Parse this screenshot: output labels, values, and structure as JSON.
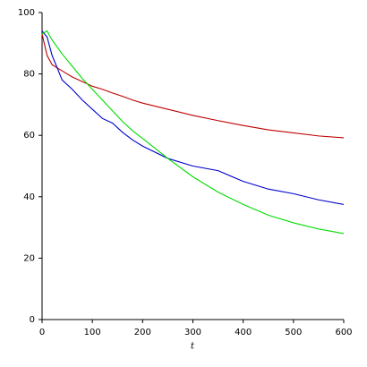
{
  "chart_data": {
    "type": "line",
    "x_label": "t",
    "x": [
      0,
      10,
      20,
      40,
      60,
      80,
      100,
      120,
      140,
      160,
      180,
      200,
      250,
      300,
      350,
      400,
      450,
      500,
      550,
      600
    ],
    "series": [
      {
        "color": "#c00000",
        "values": [
          93,
          86,
          83,
          81,
          79,
          77.5,
          76,
          75,
          73.8,
          72.7,
          71.5,
          70.5,
          68.5,
          66.5,
          64.8,
          63.2,
          61.8,
          60.8,
          59.8,
          59.2
        ]
      },
      {
        "color": "#0000cc",
        "values": [
          94,
          92,
          86,
          78,
          75,
          71.5,
          68.5,
          65.5,
          64,
          61,
          58.5,
          56.5,
          52.5,
          50,
          48.5,
          45,
          42.5,
          41,
          39,
          37.5
        ]
      },
      {
        "color": "#00dd00",
        "values": [
          93,
          94,
          91,
          86.5,
          82.5,
          78.5,
          75,
          71.5,
          68,
          64.5,
          61.5,
          59,
          52.5,
          46.5,
          41.5,
          37.5,
          34,
          31.5,
          29.5,
          28
        ]
      }
    ],
    "xlim": [
      0,
      600
    ],
    "ylim": [
      0,
      100
    ],
    "xticks": [
      0,
      100,
      200,
      300,
      400,
      500,
      600
    ],
    "yticks": [
      0,
      20,
      40,
      60,
      80,
      100
    ]
  }
}
